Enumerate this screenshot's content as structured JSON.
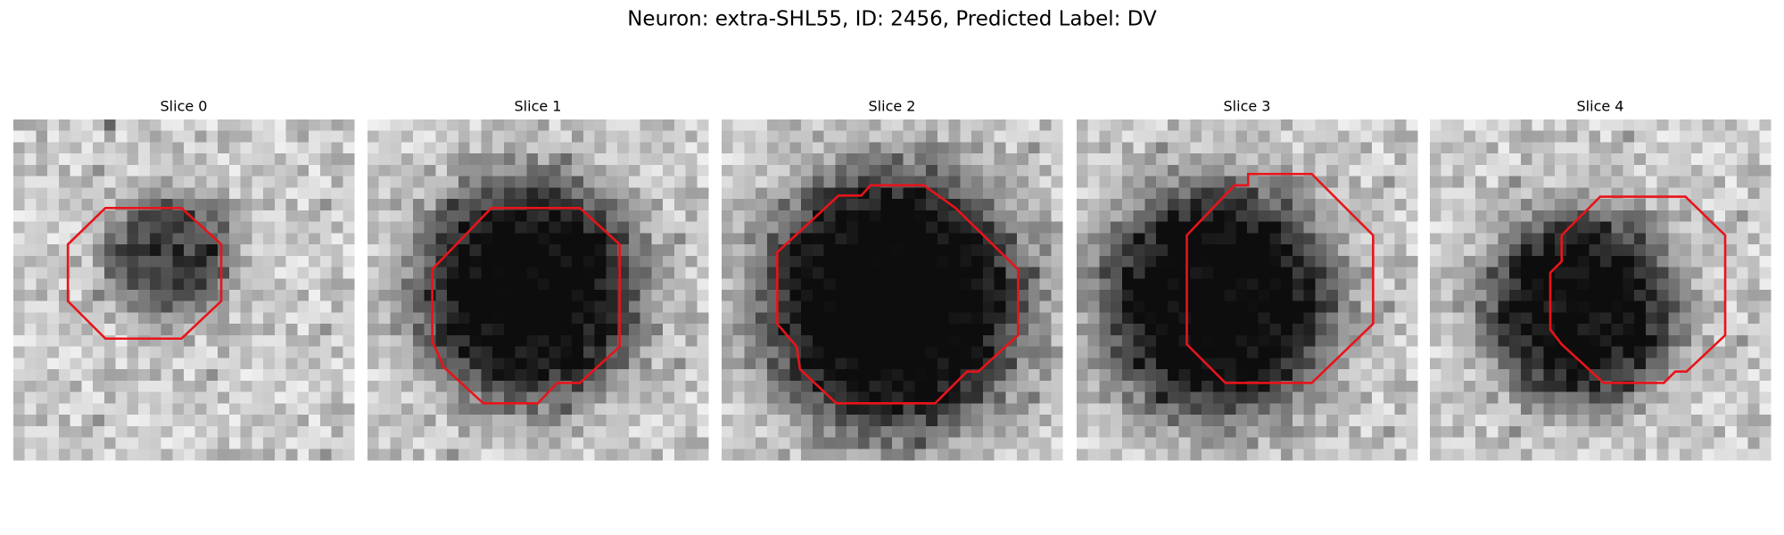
{
  "title": "Neuron: extra-SHL55, ID: 2456, Predicted Label: DV",
  "panels": [
    {
      "title": "Slice 0"
    },
    {
      "title": "Slice 1"
    },
    {
      "title": "Slice 2"
    },
    {
      "title": "Slice 3"
    },
    {
      "title": "Slice 4"
    }
  ]
}
